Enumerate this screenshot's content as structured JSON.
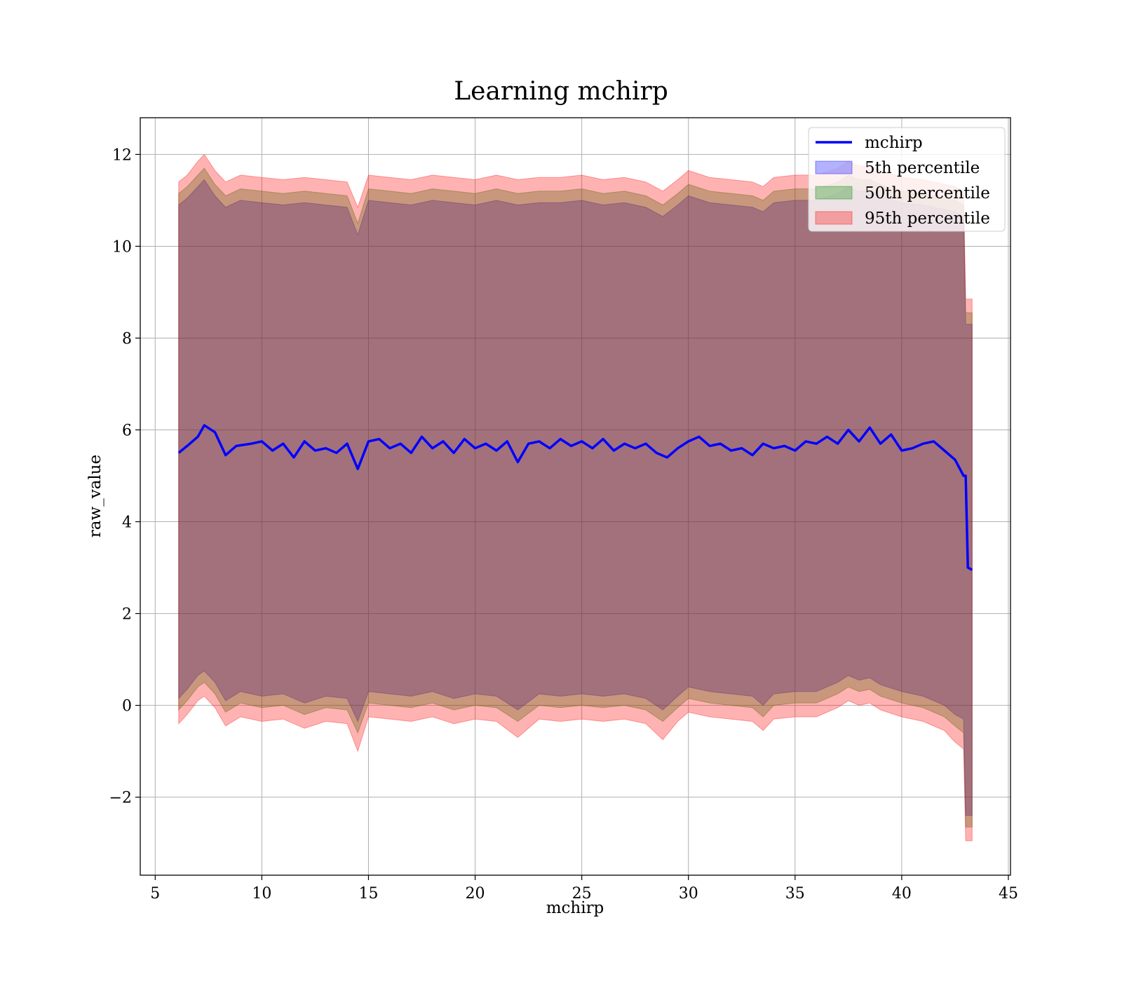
{
  "chart_data": {
    "type": "line",
    "title": "Learning mchirp",
    "xlabel": "mchirp",
    "ylabel": "raw_value",
    "xlim": [
      4.3,
      45.1
    ],
    "ylim": [
      -3.7,
      12.8
    ],
    "xticks": [
      5,
      10,
      15,
      20,
      25,
      30,
      35,
      40,
      45
    ],
    "yticks": [
      -2,
      0,
      2,
      4,
      6,
      8,
      10,
      12
    ],
    "ytick_labels": [
      "−2",
      "0",
      "2",
      "4",
      "6",
      "8",
      "10",
      "12"
    ],
    "grid": true,
    "legend_position": "top-right",
    "colors": {
      "line": "#0000ff",
      "band_5th": "#0000ff",
      "band_50th": "#008000",
      "band_95th": "#ff0000",
      "grid": "#b0b0b0"
    },
    "legend": [
      {
        "label": "mchirp",
        "kind": "line",
        "color": "#0000ff"
      },
      {
        "label": "5th percentile",
        "kind": "band",
        "color": "#0000ff"
      },
      {
        "label": "50th percentile",
        "kind": "band",
        "color": "#008000"
      },
      {
        "label": "95th percentile",
        "kind": "band",
        "color": "#ff0000"
      }
    ],
    "series": [
      {
        "name": "mchirp",
        "x": [
          6.1,
          6.5,
          7.0,
          7.3,
          7.8,
          8.3,
          8.8,
          9.5,
          10.0,
          10.5,
          11.0,
          11.5,
          12.0,
          12.5,
          13.0,
          13.5,
          14.0,
          14.5,
          15.0,
          15.5,
          16.0,
          16.5,
          17.0,
          17.5,
          18.0,
          18.5,
          19.0,
          19.5,
          20.0,
          20.5,
          21.0,
          21.5,
          22.0,
          22.5,
          23.0,
          23.5,
          24.0,
          24.5,
          25.0,
          25.5,
          26.0,
          26.5,
          27.0,
          27.5,
          28.0,
          28.5,
          29.0,
          29.5,
          30.0,
          30.5,
          31.0,
          31.5,
          32.0,
          32.5,
          33.0,
          33.5,
          34.0,
          34.5,
          35.0,
          35.5,
          36.0,
          36.5,
          37.0,
          37.5,
          38.0,
          38.5,
          39.0,
          39.5,
          40.0,
          40.5,
          41.0,
          41.5,
          42.0,
          42.5,
          42.9,
          43.0,
          43.1,
          43.3
        ],
        "y": [
          5.5,
          5.65,
          5.85,
          6.1,
          5.95,
          5.45,
          5.65,
          5.7,
          5.75,
          5.55,
          5.7,
          5.4,
          5.75,
          5.55,
          5.6,
          5.5,
          5.7,
          5.15,
          5.75,
          5.8,
          5.6,
          5.7,
          5.5,
          5.85,
          5.6,
          5.75,
          5.5,
          5.8,
          5.6,
          5.7,
          5.55,
          5.75,
          5.3,
          5.7,
          5.75,
          5.6,
          5.8,
          5.65,
          5.75,
          5.6,
          5.8,
          5.55,
          5.7,
          5.6,
          5.7,
          5.5,
          5.4,
          5.6,
          5.75,
          5.85,
          5.65,
          5.7,
          5.55,
          5.6,
          5.45,
          5.7,
          5.6,
          5.65,
          5.55,
          5.75,
          5.7,
          5.85,
          5.7,
          6.0,
          5.75,
          6.05,
          5.7,
          5.9,
          5.55,
          5.6,
          5.7,
          5.75,
          5.55,
          5.35,
          5.0,
          5.0,
          3.0,
          2.95
        ]
      },
      {
        "name": "5th percentile",
        "x": [
          6.1,
          6.5,
          7.0,
          7.3,
          7.8,
          8.3,
          9.0,
          10.0,
          11.0,
          12.0,
          13.0,
          14.0,
          14.5,
          15.0,
          16.0,
          17.0,
          18.0,
          19.0,
          20.0,
          21.0,
          22.0,
          23.0,
          24.0,
          25.0,
          26.0,
          27.0,
          28.0,
          28.8,
          29.5,
          30.0,
          31.0,
          32.0,
          33.0,
          33.5,
          34.0,
          35.0,
          36.0,
          37.0,
          37.5,
          38.0,
          38.5,
          39.0,
          40.0,
          41.0,
          42.0,
          42.5,
          42.9,
          43.0,
          43.3
        ],
        "lower": [
          0.15,
          0.35,
          0.65,
          0.75,
          0.5,
          0.1,
          0.3,
          0.2,
          0.25,
          0.05,
          0.2,
          0.15,
          -0.35,
          0.3,
          0.25,
          0.2,
          0.3,
          0.15,
          0.25,
          0.2,
          -0.1,
          0.25,
          0.2,
          0.25,
          0.2,
          0.25,
          0.15,
          -0.1,
          0.2,
          0.4,
          0.3,
          0.25,
          0.2,
          0.0,
          0.25,
          0.3,
          0.3,
          0.5,
          0.65,
          0.55,
          0.6,
          0.45,
          0.3,
          0.2,
          0.0,
          -0.2,
          -0.3,
          -2.4,
          -2.4
        ],
        "upper": [
          10.9,
          11.05,
          11.3,
          11.45,
          11.1,
          10.85,
          11.0,
          10.95,
          10.9,
          10.95,
          10.9,
          10.85,
          10.25,
          11.0,
          10.95,
          10.9,
          11.0,
          10.95,
          10.9,
          11.0,
          10.9,
          10.95,
          10.95,
          11.0,
          10.9,
          10.95,
          10.85,
          10.65,
          10.9,
          11.1,
          10.95,
          10.9,
          10.85,
          10.75,
          10.95,
          11.0,
          11.0,
          11.15,
          11.3,
          11.2,
          11.2,
          11.1,
          10.95,
          10.9,
          10.8,
          10.75,
          10.65,
          8.3,
          8.3
        ]
      },
      {
        "name": "50th percentile",
        "x": [
          6.1,
          6.5,
          7.0,
          7.3,
          7.8,
          8.3,
          9.0,
          10.0,
          11.0,
          12.0,
          13.0,
          14.0,
          14.5,
          15.0,
          16.0,
          17.0,
          18.0,
          19.0,
          20.0,
          21.0,
          22.0,
          23.0,
          24.0,
          25.0,
          26.0,
          27.0,
          28.0,
          28.8,
          29.5,
          30.0,
          31.0,
          32.0,
          33.0,
          33.5,
          34.0,
          35.0,
          36.0,
          37.0,
          37.5,
          38.0,
          38.5,
          39.0,
          40.0,
          41.0,
          42.0,
          42.5,
          42.9,
          43.0,
          43.3
        ],
        "lower": [
          -0.1,
          0.1,
          0.4,
          0.5,
          0.25,
          -0.15,
          0.05,
          -0.05,
          0.0,
          -0.2,
          -0.05,
          -0.1,
          -0.6,
          0.05,
          0.0,
          -0.05,
          0.05,
          -0.1,
          0.0,
          -0.05,
          -0.35,
          0.0,
          -0.05,
          0.0,
          -0.05,
          0.0,
          -0.1,
          -0.35,
          -0.05,
          0.15,
          0.05,
          0.0,
          -0.05,
          -0.25,
          0.0,
          0.05,
          0.05,
          0.25,
          0.4,
          0.3,
          0.35,
          0.2,
          0.05,
          -0.05,
          -0.25,
          -0.45,
          -0.6,
          -2.65,
          -2.65
        ],
        "upper": [
          11.15,
          11.3,
          11.55,
          11.7,
          11.35,
          11.1,
          11.25,
          11.2,
          11.15,
          11.2,
          11.15,
          11.1,
          10.5,
          11.25,
          11.2,
          11.15,
          11.25,
          11.2,
          11.15,
          11.25,
          11.15,
          11.2,
          11.2,
          11.25,
          11.15,
          11.2,
          11.1,
          10.9,
          11.15,
          11.35,
          11.2,
          11.15,
          11.1,
          11.0,
          11.2,
          11.25,
          11.25,
          11.4,
          11.55,
          11.45,
          11.45,
          11.35,
          11.2,
          11.15,
          11.05,
          11.0,
          10.9,
          8.55,
          8.55
        ]
      },
      {
        "name": "95th percentile",
        "x": [
          6.1,
          6.5,
          7.0,
          7.3,
          7.8,
          8.3,
          9.0,
          10.0,
          11.0,
          12.0,
          13.0,
          14.0,
          14.5,
          15.0,
          16.0,
          17.0,
          18.0,
          19.0,
          20.0,
          21.0,
          22.0,
          23.0,
          24.0,
          25.0,
          26.0,
          27.0,
          28.0,
          28.8,
          29.5,
          30.0,
          31.0,
          32.0,
          33.0,
          33.5,
          34.0,
          35.0,
          36.0,
          37.0,
          37.5,
          38.0,
          38.5,
          39.0,
          40.0,
          41.0,
          42.0,
          42.5,
          42.9,
          43.0,
          43.3
        ],
        "lower": [
          -0.4,
          -0.2,
          0.1,
          0.2,
          -0.05,
          -0.45,
          -0.25,
          -0.35,
          -0.3,
          -0.5,
          -0.35,
          -0.4,
          -1.0,
          -0.25,
          -0.3,
          -0.35,
          -0.25,
          -0.4,
          -0.3,
          -0.35,
          -0.7,
          -0.3,
          -0.35,
          -0.3,
          -0.35,
          -0.3,
          -0.4,
          -0.75,
          -0.35,
          -0.15,
          -0.25,
          -0.3,
          -0.35,
          -0.55,
          -0.3,
          -0.25,
          -0.25,
          -0.05,
          0.1,
          0.0,
          0.05,
          -0.1,
          -0.25,
          -0.35,
          -0.55,
          -0.8,
          -0.95,
          -2.95,
          -2.95
        ],
        "upper": [
          11.4,
          11.55,
          11.85,
          12.0,
          11.65,
          11.4,
          11.55,
          11.5,
          11.45,
          11.5,
          11.45,
          11.4,
          10.85,
          11.55,
          11.5,
          11.45,
          11.55,
          11.5,
          11.45,
          11.55,
          11.45,
          11.5,
          11.5,
          11.55,
          11.45,
          11.5,
          11.4,
          11.2,
          11.45,
          11.65,
          11.5,
          11.45,
          11.4,
          11.3,
          11.5,
          11.55,
          11.55,
          11.7,
          11.85,
          11.75,
          11.75,
          11.65,
          11.5,
          11.45,
          11.35,
          11.3,
          11.2,
          8.85,
          8.85
        ]
      }
    ]
  }
}
